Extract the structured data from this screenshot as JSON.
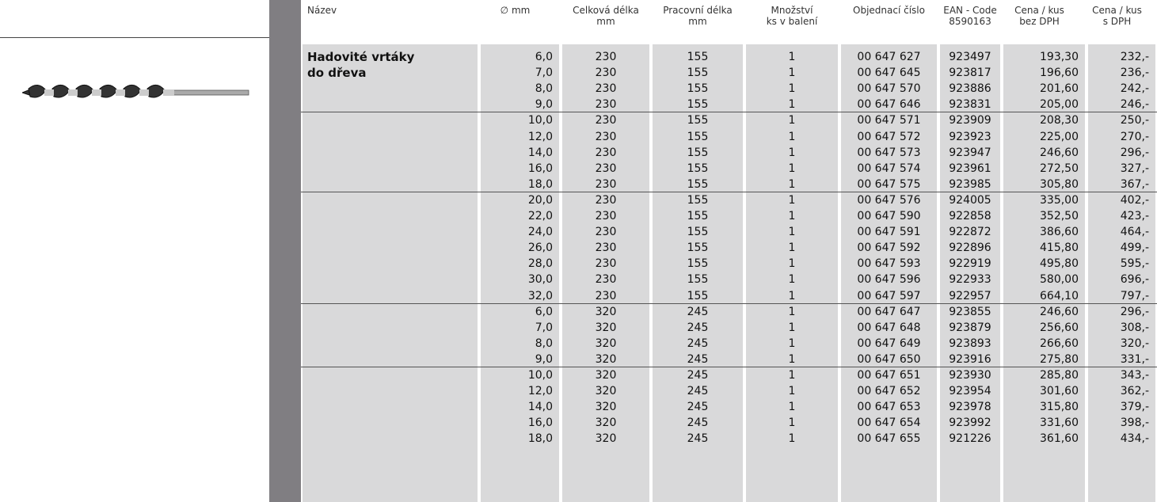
{
  "header": {
    "columns": [
      [
        "Název"
      ],
      [
        "∅ mm"
      ],
      [
        "Celková délka",
        "mm"
      ],
      [
        "Pracovní délka",
        "mm"
      ],
      [
        "Množství",
        "ks v balení"
      ],
      [
        "Objednací číslo"
      ],
      [
        "EAN - Code",
        "8590163"
      ],
      [
        "Cena / kus",
        "bez DPH"
      ],
      [
        "Cena / kus",
        "s DPH"
      ]
    ]
  },
  "product": {
    "name": [
      "Hadovité vrtáky",
      "do dřeva"
    ]
  },
  "groups": [
    {
      "rows": [
        [
          "6,0",
          "230",
          "155",
          "1",
          "00 647 627",
          "923497",
          "193,30",
          "232,-"
        ],
        [
          "7,0",
          "230",
          "155",
          "1",
          "00 647 645",
          "923817",
          "196,60",
          "236,-"
        ],
        [
          "8,0",
          "230",
          "155",
          "1",
          "00 647 570",
          "923886",
          "201,60",
          "242,-"
        ],
        [
          "9,0",
          "230",
          "155",
          "1",
          "00 647 646",
          "923831",
          "205,00",
          "246,-"
        ]
      ]
    },
    {
      "rows": [
        [
          "10,0",
          "230",
          "155",
          "1",
          "00 647 571",
          "923909",
          "208,30",
          "250,-"
        ],
        [
          "12,0",
          "230",
          "155",
          "1",
          "00 647 572",
          "923923",
          "225,00",
          "270,-"
        ],
        [
          "14,0",
          "230",
          "155",
          "1",
          "00 647 573",
          "923947",
          "246,60",
          "296,-"
        ],
        [
          "16,0",
          "230",
          "155",
          "1",
          "00 647 574",
          "923961",
          "272,50",
          "327,-"
        ],
        [
          "18,0",
          "230",
          "155",
          "1",
          "00 647 575",
          "923985",
          "305,80",
          "367,-"
        ]
      ]
    },
    {
      "rows": [
        [
          "20,0",
          "230",
          "155",
          "1",
          "00 647 576",
          "924005",
          "335,00",
          "402,-"
        ],
        [
          "22,0",
          "230",
          "155",
          "1",
          "00 647 590",
          "922858",
          "352,50",
          "423,-"
        ],
        [
          "24,0",
          "230",
          "155",
          "1",
          "00 647 591",
          "922872",
          "386,60",
          "464,-"
        ],
        [
          "26,0",
          "230",
          "155",
          "1",
          "00 647 592",
          "922896",
          "415,80",
          "499,-"
        ],
        [
          "28,0",
          "230",
          "155",
          "1",
          "00 647 593",
          "922919",
          "495,80",
          "595,-"
        ],
        [
          "30,0",
          "230",
          "155",
          "1",
          "00 647 596",
          "922933",
          "580,00",
          "696,-"
        ],
        [
          "32,0",
          "230",
          "155",
          "1",
          "00 647 597",
          "922957",
          "664,10",
          "797,-"
        ]
      ]
    },
    {
      "rows": [
        [
          "6,0",
          "320",
          "245",
          "1",
          "00 647 647",
          "923855",
          "246,60",
          "296,-"
        ],
        [
          "7,0",
          "320",
          "245",
          "1",
          "00 647 648",
          "923879",
          "256,60",
          "308,-"
        ],
        [
          "8,0",
          "320",
          "245",
          "1",
          "00 647 649",
          "923893",
          "266,60",
          "320,-"
        ],
        [
          "9,0",
          "320",
          "245",
          "1",
          "00 647 650",
          "923916",
          "275,80",
          "331,-"
        ]
      ]
    },
    {
      "rows": [
        [
          "10,0",
          "320",
          "245",
          "1",
          "00 647 651",
          "923930",
          "285,80",
          "343,-"
        ],
        [
          "12,0",
          "320",
          "245",
          "1",
          "00 647 652",
          "923954",
          "301,60",
          "362,-"
        ],
        [
          "14,0",
          "320",
          "245",
          "1",
          "00 647 653",
          "923978",
          "315,80",
          "379,-"
        ],
        [
          "16,0",
          "320",
          "245",
          "1",
          "00 647 654",
          "923992",
          "331,60",
          "398,-"
        ],
        [
          "18,0",
          "320",
          "245",
          "1",
          "00 647 655",
          "921226",
          "361,60",
          "434,-"
        ]
      ]
    }
  ]
}
